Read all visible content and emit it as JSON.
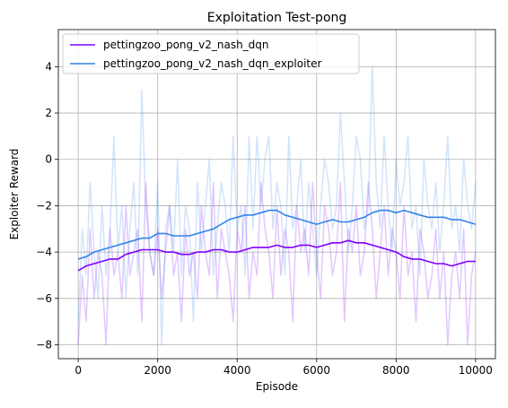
{
  "chart_data": {
    "type": "line",
    "title": "Exploitation Test-pong",
    "xlabel": "Episode",
    "ylabel": "Exploiter Reward",
    "xlim": [
      -500,
      10500
    ],
    "ylim": [
      -8.6,
      5.6
    ],
    "xticks": [
      0,
      2000,
      4000,
      6000,
      8000,
      10000
    ],
    "yticks": [
      -8,
      -6,
      -4,
      -2,
      0,
      2,
      4
    ],
    "xtick_labels": [
      "0",
      "2000",
      "4000",
      "6000",
      "8000",
      "10000"
    ],
    "ytick_labels": [
      "−8",
      "−6",
      "−4",
      "−2",
      "0",
      "2",
      "4"
    ],
    "grid": true,
    "legend_position": "upper-left",
    "series": [
      {
        "name": "pettingzoo_pong_v2_nash_dqn",
        "color": "#7f00ff",
        "raw_alpha": 0.22,
        "smoothed": {
          "x": [
            0,
            200,
            400,
            600,
            800,
            1000,
            1200,
            1400,
            1600,
            1800,
            2000,
            2200,
            2400,
            2600,
            2800,
            3000,
            3200,
            3400,
            3600,
            3800,
            4000,
            4200,
            4400,
            4600,
            4800,
            5000,
            5200,
            5400,
            5600,
            5800,
            6000,
            6200,
            6400,
            6600,
            6800,
            7000,
            7200,
            7400,
            7600,
            7800,
            8000,
            8200,
            8400,
            8600,
            8800,
            9000,
            9200,
            9400,
            9600,
            9800,
            10000
          ],
          "y": [
            -4.8,
            -4.6,
            -4.5,
            -4.4,
            -4.3,
            -4.3,
            -4.1,
            -4.0,
            -3.9,
            -3.9,
            -3.9,
            -4.0,
            -4.0,
            -4.1,
            -4.1,
            -4.0,
            -4.0,
            -3.9,
            -3.9,
            -4.0,
            -4.0,
            -3.9,
            -3.8,
            -3.8,
            -3.8,
            -3.7,
            -3.8,
            -3.8,
            -3.7,
            -3.7,
            -3.8,
            -3.7,
            -3.6,
            -3.6,
            -3.5,
            -3.6,
            -3.6,
            -3.7,
            -3.8,
            -3.9,
            -4.0,
            -4.2,
            -4.3,
            -4.3,
            -4.4,
            -4.5,
            -4.5,
            -4.6,
            -4.5,
            -4.4,
            -4.4
          ]
        },
        "raw": {
          "x": [
            0,
            100,
            200,
            300,
            400,
            500,
            600,
            700,
            800,
            900,
            1000,
            1100,
            1200,
            1300,
            1400,
            1500,
            1600,
            1700,
            1800,
            1900,
            2000,
            2100,
            2200,
            2300,
            2400,
            2500,
            2600,
            2700,
            2800,
            2900,
            3000,
            3100,
            3200,
            3300,
            3400,
            3500,
            3600,
            3700,
            3800,
            3900,
            4000,
            4100,
            4200,
            4300,
            4400,
            4500,
            4600,
            4700,
            4800,
            4900,
            5000,
            5100,
            5200,
            5300,
            5400,
            5500,
            5600,
            5700,
            5800,
            5900,
            6000,
            6100,
            6200,
            6300,
            6400,
            6500,
            6600,
            6700,
            6800,
            6900,
            7000,
            7100,
            7200,
            7300,
            7400,
            7500,
            7600,
            7700,
            7800,
            7900,
            8000,
            8100,
            8200,
            8300,
            8400,
            8500,
            8600,
            8700,
            8800,
            8900,
            9000,
            9100,
            9200,
            9300,
            9400,
            9500,
            9600,
            9700,
            9800,
            9900,
            10000
          ],
          "y": [
            -8,
            -5,
            -7,
            -3,
            -6,
            -4,
            -5,
            -8,
            -3,
            -5,
            -4,
            -6,
            -2,
            -5,
            -4,
            -3,
            -7,
            -1,
            -4,
            -5,
            -3,
            -6,
            -4,
            -2,
            -5,
            -4,
            -7,
            -3,
            -5,
            -4,
            -6,
            -2,
            -4,
            -5,
            -1,
            -6,
            -3,
            -4,
            -5,
            -7,
            -3,
            -4,
            -2,
            -6,
            -4,
            -5,
            -1,
            -3,
            -4,
            -6,
            -2,
            -5,
            -3,
            -4,
            -7,
            -2,
            -4,
            -3,
            -5,
            -1,
            -4,
            -6,
            -2,
            -3,
            -5,
            -4,
            -1,
            -7,
            -3,
            -4,
            -2,
            -5,
            -4,
            -1,
            -3,
            -6,
            -4,
            -2,
            -5,
            -3,
            -4,
            -6,
            -2,
            -5,
            -4,
            -7,
            -3,
            -4,
            -6,
            -5,
            -3,
            -6,
            -4,
            -8,
            -5,
            -4,
            -6,
            -3,
            -8,
            -5,
            -4
          ]
        }
      },
      {
        "name": "pettingzoo_pong_v2_nash_dqn_exploiter",
        "color": "#3383e6",
        "raw_alpha": 0.22,
        "smoothed": {
          "x": [
            0,
            200,
            400,
            600,
            800,
            1000,
            1200,
            1400,
            1600,
            1800,
            2000,
            2200,
            2400,
            2600,
            2800,
            3000,
            3200,
            3400,
            3600,
            3800,
            4000,
            4200,
            4400,
            4600,
            4800,
            5000,
            5200,
            5400,
            5600,
            5800,
            6000,
            6200,
            6400,
            6600,
            6800,
            7000,
            7200,
            7400,
            7600,
            7800,
            8000,
            8200,
            8400,
            8600,
            8800,
            9000,
            9200,
            9400,
            9600,
            9800,
            10000
          ],
          "y": [
            -4.3,
            -4.2,
            -4.0,
            -3.9,
            -3.8,
            -3.7,
            -3.6,
            -3.5,
            -3.4,
            -3.4,
            -3.2,
            -3.2,
            -3.3,
            -3.3,
            -3.3,
            -3.2,
            -3.1,
            -3.0,
            -2.8,
            -2.6,
            -2.5,
            -2.4,
            -2.4,
            -2.3,
            -2.2,
            -2.2,
            -2.4,
            -2.5,
            -2.6,
            -2.7,
            -2.8,
            -2.7,
            -2.6,
            -2.7,
            -2.7,
            -2.6,
            -2.5,
            -2.3,
            -2.2,
            -2.2,
            -2.3,
            -2.2,
            -2.3,
            -2.4,
            -2.5,
            -2.5,
            -2.5,
            -2.6,
            -2.6,
            -2.7,
            -2.8
          ]
        },
        "raw": {
          "x": [
            0,
            100,
            200,
            300,
            400,
            500,
            600,
            700,
            800,
            900,
            1000,
            1100,
            1200,
            1300,
            1400,
            1500,
            1600,
            1700,
            1800,
            1900,
            2000,
            2100,
            2200,
            2300,
            2400,
            2500,
            2600,
            2700,
            2800,
            2900,
            3000,
            3100,
            3200,
            3300,
            3400,
            3500,
            3600,
            3700,
            3800,
            3900,
            4000,
            4100,
            4200,
            4300,
            4400,
            4500,
            4600,
            4700,
            4800,
            4900,
            5000,
            5100,
            5200,
            5300,
            5400,
            5500,
            5600,
            5700,
            5800,
            5900,
            6000,
            6100,
            6200,
            6300,
            6400,
            6500,
            6600,
            6700,
            6800,
            6900,
            7000,
            7100,
            7200,
            7300,
            7400,
            7500,
            7600,
            7700,
            7800,
            7900,
            8000,
            8100,
            8200,
            8300,
            8400,
            8500,
            8600,
            8700,
            8800,
            8900,
            9000,
            9100,
            9200,
            9300,
            9400,
            9500,
            9600,
            9700,
            9800,
            9900,
            10000
          ],
          "y": [
            -7,
            -3,
            -5,
            -1,
            -4,
            -6,
            -2,
            -5,
            -3,
            1,
            -4,
            -2,
            -6,
            -3,
            -1,
            -5,
            3,
            -2,
            -4,
            -5,
            -1,
            -8,
            -3,
            -2,
            -4,
            0,
            -5,
            -2,
            -3,
            -7,
            -1,
            -4,
            -2,
            0,
            -5,
            -3,
            -1,
            -2,
            -4,
            1,
            -3,
            -2,
            -5,
            1,
            -3,
            1,
            -2,
            0,
            1,
            -3,
            -1,
            -2,
            -5,
            1,
            -3,
            -2,
            0,
            -4,
            -1,
            -3,
            -5,
            -2,
            0,
            -1,
            -3,
            -2,
            2,
            -1,
            -4,
            -2,
            1,
            0,
            -3,
            -2,
            4,
            -1,
            -3,
            1,
            -2,
            -4,
            0,
            -2,
            -1,
            1,
            -3,
            -2,
            -5,
            0,
            -2,
            -3,
            -1,
            -4,
            -2,
            1,
            -3,
            -2,
            -4,
            0,
            -2,
            -3,
            -1
          ]
        }
      }
    ]
  }
}
